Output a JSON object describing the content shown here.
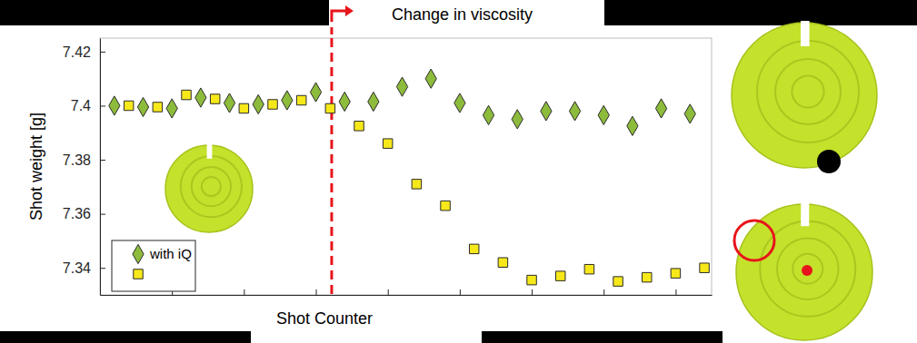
{
  "chart_data": {
    "type": "scatter",
    "x_label": "Shot Counter",
    "y_label": "Shot weight [g]",
    "xlim": [
      0,
      42.5
    ],
    "xticks": [
      0,
      5,
      10,
      15,
      20,
      25,
      30,
      35,
      40
    ],
    "ylim": [
      7.33,
      7.425
    ],
    "yticks": [
      7.34,
      7.36,
      7.38,
      7.4,
      7.42
    ],
    "tick_labels": "y",
    "grid": false,
    "legend": "lower left",
    "annotations": [
      {
        "text": "Change in viscosity",
        "x": 16.1
      }
    ],
    "series": [
      {
        "name": "with iQ",
        "color": "#8dbb3c",
        "marker": "diamond",
        "x": [
          1,
          3,
          5,
          7,
          9,
          11,
          13,
          15,
          17,
          19,
          21,
          23,
          25,
          27,
          29,
          31,
          33,
          35,
          37,
          39,
          41
        ],
        "values": [
          7.4,
          7.3995,
          7.399,
          7.403,
          7.401,
          7.4005,
          7.402,
          7.405,
          7.4015,
          7.4015,
          7.407,
          7.41,
          7.401,
          7.3965,
          7.395,
          7.398,
          7.398,
          7.3965,
          7.3925,
          7.399,
          7.397
        ]
      },
      {
        "color": "#f7e81a",
        "marker": "square",
        "x": [
          2,
          4,
          6,
          8,
          10,
          12,
          14,
          16,
          18,
          20,
          22,
          24,
          26,
          28,
          30,
          32,
          34,
          36,
          38,
          40,
          42
        ],
        "values": [
          7.4,
          7.3995,
          7.404,
          7.4025,
          7.399,
          7.4005,
          7.402,
          7.399,
          7.3925,
          7.386,
          7.371,
          7.363,
          7.347,
          7.342,
          7.3355,
          7.337,
          7.3395,
          7.335,
          7.3365,
          7.338,
          7.34
        ]
      }
    ]
  }
}
